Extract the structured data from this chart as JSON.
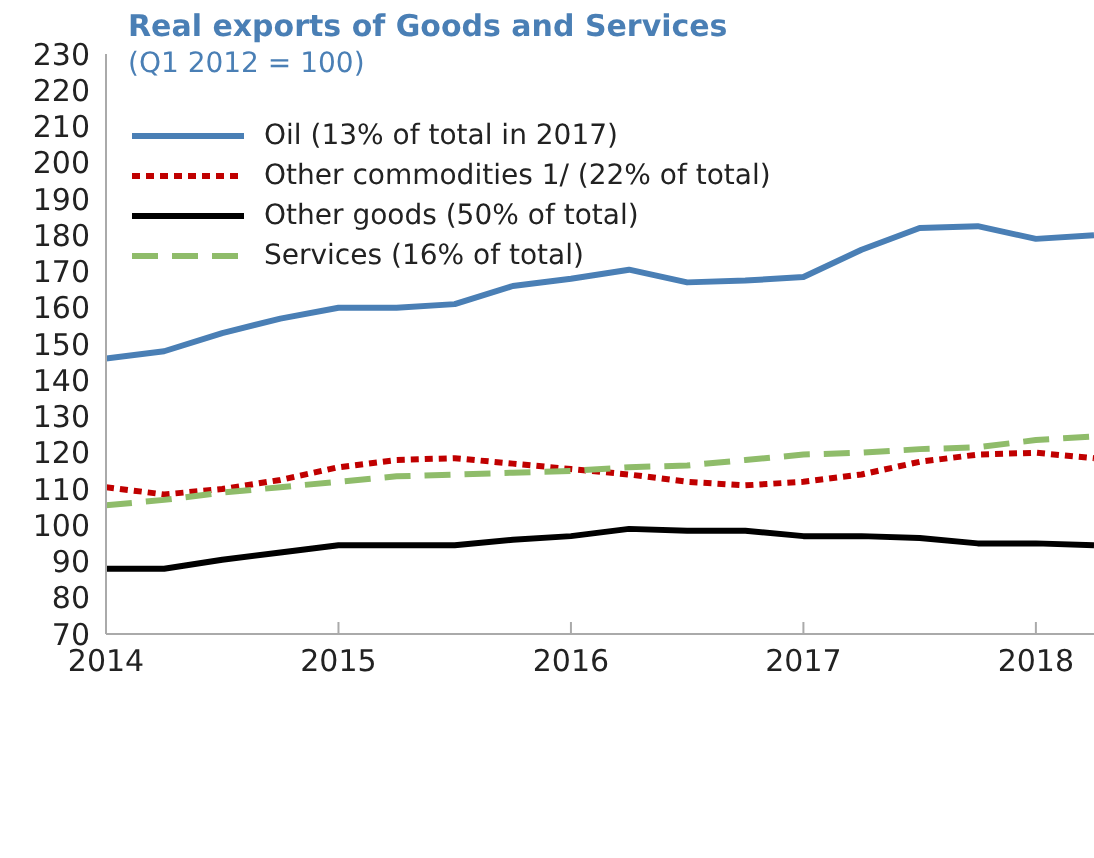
{
  "chart_data": {
    "type": "line",
    "title": "Real exports of Goods and Services",
    "subtitle": "(Q1 2012 = 100)",
    "x": [
      2014,
      2014.25,
      2014.5,
      2014.75,
      2015,
      2015.25,
      2015.5,
      2015.75,
      2016,
      2016.25,
      2016.5,
      2016.75,
      2017,
      2017.25,
      2017.5,
      2017.75,
      2018,
      2018.25
    ],
    "xlim": [
      2014,
      2018.25
    ],
    "xticks": [
      2014,
      2015,
      2016,
      2017,
      2018
    ],
    "ylim": [
      70,
      230
    ],
    "yticks": [
      70,
      80,
      90,
      100,
      110,
      120,
      130,
      140,
      150,
      160,
      170,
      180,
      190,
      200,
      210,
      220,
      230
    ],
    "grid": false,
    "legend": "top left",
    "marker": "none",
    "series": [
      {
        "name": "Oil (13% of total in 2017)",
        "color": "#4a7fb5",
        "line_style": "solid",
        "values": [
          146,
          148,
          153,
          157,
          160,
          160,
          161,
          166,
          168,
          170.5,
          167,
          167.5,
          168.5,
          176,
          182,
          182.5,
          179,
          180
        ]
      },
      {
        "name": "Other commodities 1/ (22% of total)",
        "color": "#c00000",
        "line_style": "dotted",
        "values": [
          110.5,
          108.5,
          110,
          112.5,
          116,
          118,
          118.5,
          117,
          115.5,
          114,
          112,
          111,
          112,
          114,
          117.5,
          119.5,
          120,
          118.5
        ]
      },
      {
        "name": "Other goods (50% of total)",
        "color": "#000000",
        "line_style": "solid",
        "values": [
          88,
          88,
          90.5,
          92.5,
          94.5,
          94.5,
          94.5,
          96,
          97,
          99,
          98.5,
          98.5,
          97,
          97,
          96.5,
          95,
          95,
          94.5
        ]
      },
      {
        "name": "Services (16% of total)",
        "color": "#8fbc6a",
        "line_style": "dashed",
        "values": [
          105.5,
          107,
          109,
          110.5,
          112,
          113.5,
          114,
          114.5,
          115,
          116,
          116.5,
          118,
          119.5,
          120,
          121,
          121.5,
          123.5,
          124.5
        ]
      }
    ]
  }
}
